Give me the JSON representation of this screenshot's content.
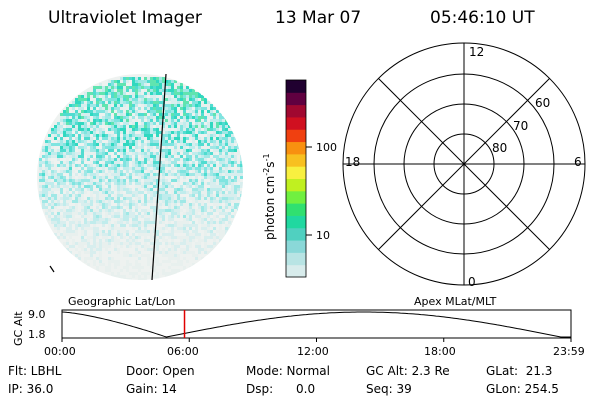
{
  "header": {
    "instrument": "Ultraviolet Imager",
    "date": "13 Mar 07",
    "time": "05:46:10 UT"
  },
  "colorbar": {
    "unit_label": "photon cm",
    "unit_exp1": "-2",
    "unit_s": "s",
    "unit_exp2": "-1",
    "tick_labels": [
      "100",
      "10"
    ],
    "colors": [
      "#d8ecec",
      "#b8e4e4",
      "#8ad8d8",
      "#50d0c0",
      "#20d8a0",
      "#30e070",
      "#70f040",
      "#c0f020",
      "#f8f040",
      "#f8c020",
      "#f89010",
      "#f04010",
      "#d01020",
      "#a00830",
      "#600040",
      "#200030"
    ]
  },
  "left_panel": {
    "label": "Geographic Lat/Lon",
    "palette": [
      "#e8f0ee",
      "#d8eeee",
      "#c0ecec",
      "#a0e8e6",
      "#80e4e0",
      "#50dcd0",
      "#30d8c0",
      "#60e4b0"
    ]
  },
  "right_panel": {
    "label": "Apex MLat/MLT",
    "mlt_labels": {
      "top": "12",
      "bottom": "0",
      "left": "18",
      "right": "6"
    },
    "lat_labels": [
      "60",
      "70",
      "80"
    ]
  },
  "altitude_plot": {
    "ylabel": "GC Alt",
    "ytick_top": "9.0",
    "ytick_bottom": "1.8",
    "time_ticks": [
      "00:00",
      "06:00",
      "12:00",
      "18:00",
      "23:59"
    ],
    "current_time_fraction": 0.2407,
    "marker_color": "#e00000"
  },
  "status": {
    "flt": "Flt: LBHL",
    "ip": "IP: 36.0",
    "door": "Door: Open",
    "gain": "Gain: 14",
    "mode": "Mode: Normal",
    "dsp": "Dsp:      0.0",
    "gc_alt": "GC Alt: 2.3 Re",
    "seq": "Seq: 39",
    "glat": "GLat:  21.3",
    "glon": "GLon: 254.5"
  }
}
